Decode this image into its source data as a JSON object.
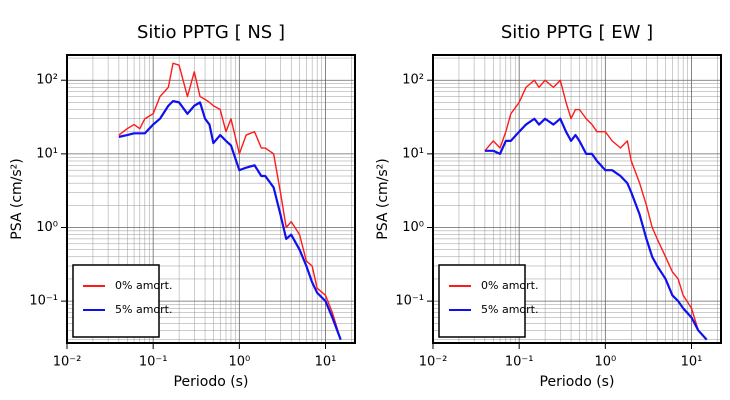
{
  "chart_data": [
    {
      "type": "line",
      "title": "Sitio PPTG [ NS ]",
      "x_label": "Periodo (s)",
      "y_label": "PSA (cm/s²)",
      "log_x": true,
      "log_y": true,
      "grid": true,
      "legend": "lower left",
      "xlim": [
        0.01,
        22
      ],
      "ylim": [
        0.027,
        220
      ],
      "xticks": [
        {
          "value": 0.01,
          "label": "10⁻²"
        },
        {
          "value": 0.1,
          "label": "10⁻¹"
        },
        {
          "value": 1,
          "label": "10⁰"
        },
        {
          "value": 10,
          "label": "10¹"
        }
      ],
      "yticks": [
        {
          "value": 0.1,
          "label": "10⁻¹"
        },
        {
          "value": 1,
          "label": "10⁰"
        },
        {
          "value": 10,
          "label": "10¹"
        },
        {
          "value": 100,
          "label": "10²"
        }
      ],
      "x": [
        0.04,
        0.05,
        0.06,
        0.07,
        0.08,
        0.1,
        0.12,
        0.15,
        0.17,
        0.2,
        0.25,
        0.3,
        0.35,
        0.4,
        0.45,
        0.5,
        0.6,
        0.7,
        0.8,
        1.0,
        1.2,
        1.5,
        1.8,
        2,
        2.5,
        3,
        3.5,
        4,
        5,
        6,
        7,
        8,
        10,
        12,
        15
      ],
      "series": [
        {
          "name": "0% amort.",
          "color": "#ff1a1a",
          "values": [
            18,
            22,
            25,
            22,
            30,
            35,
            60,
            80,
            170,
            160,
            60,
            130,
            60,
            55,
            50,
            45,
            40,
            20,
            30,
            10,
            18,
            20,
            12,
            12,
            10,
            3,
            1,
            1.2,
            0.8,
            0.35,
            0.3,
            0.15,
            0.12,
            0.07,
            0.03
          ]
        },
        {
          "name": "5% amort.",
          "color": "#1010ee",
          "values": [
            17,
            18,
            19,
            19,
            19,
            25,
            30,
            45,
            52,
            50,
            35,
            45,
            50,
            30,
            25,
            14,
            18,
            15,
            13,
            6,
            6.5,
            7,
            5,
            5,
            3.5,
            1.5,
            0.7,
            0.8,
            0.5,
            0.3,
            0.18,
            0.13,
            0.1,
            0.06,
            0.03
          ]
        }
      ]
    },
    {
      "type": "line",
      "title": "Sitio PPTG [ EW ]",
      "x_label": "Periodo (s)",
      "y_label": "PSA (cm/s²)",
      "log_x": true,
      "log_y": true,
      "grid": true,
      "legend": "lower left",
      "xlim": [
        0.01,
        22
      ],
      "ylim": [
        0.027,
        220
      ],
      "xticks": [
        {
          "value": 0.01,
          "label": "10⁻²"
        },
        {
          "value": 0.1,
          "label": "10⁻¹"
        },
        {
          "value": 1,
          "label": "10⁰"
        },
        {
          "value": 10,
          "label": "10¹"
        }
      ],
      "yticks": [
        {
          "value": 0.1,
          "label": "10⁻¹"
        },
        {
          "value": 1,
          "label": "10⁰"
        },
        {
          "value": 10,
          "label": "10¹"
        },
        {
          "value": 100,
          "label": "10²"
        }
      ],
      "x": [
        0.04,
        0.05,
        0.06,
        0.07,
        0.08,
        0.1,
        0.12,
        0.15,
        0.17,
        0.2,
        0.25,
        0.3,
        0.35,
        0.4,
        0.45,
        0.5,
        0.6,
        0.7,
        0.8,
        1.0,
        1.2,
        1.5,
        1.8,
        2,
        2.5,
        3,
        3.5,
        4,
        5,
        6,
        7,
        8,
        10,
        12,
        15
      ],
      "series": [
        {
          "name": "0% amort.",
          "color": "#ff1a1a",
          "values": [
            11,
            15,
            12,
            20,
            35,
            50,
            80,
            100,
            80,
            100,
            80,
            100,
            50,
            30,
            40,
            40,
            30,
            25,
            20,
            20,
            15,
            12,
            15,
            8,
            4,
            2,
            1,
            0.7,
            0.4,
            0.25,
            0.2,
            0.12,
            0.08,
            0.04,
            0.03
          ]
        },
        {
          "name": "5% amort.",
          "color": "#1010ee",
          "values": [
            11,
            11,
            10,
            15,
            15,
            20,
            25,
            30,
            25,
            30,
            25,
            30,
            20,
            15,
            18,
            15,
            10,
            10,
            8,
            6,
            6,
            5,
            4,
            3,
            1.5,
            0.7,
            0.4,
            0.3,
            0.2,
            0.12,
            0.1,
            0.08,
            0.06,
            0.04,
            0.03
          ]
        }
      ]
    }
  ]
}
